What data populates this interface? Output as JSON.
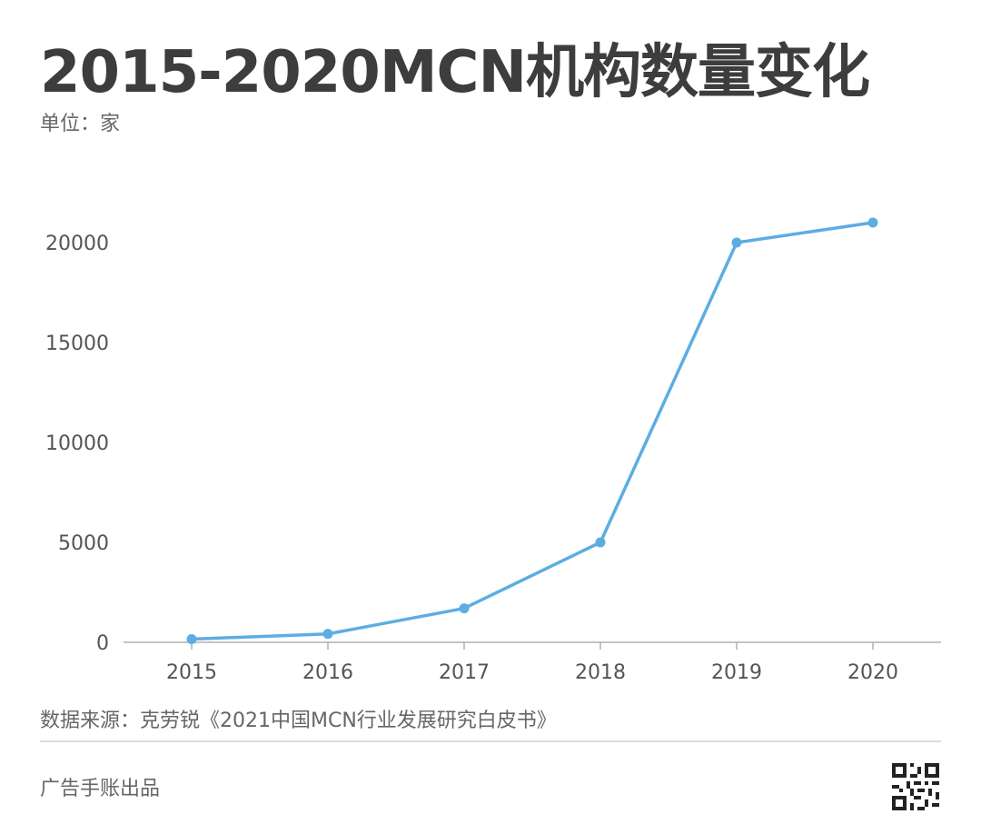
{
  "title": "2015-2020MCN机构数量变化",
  "unit": "单位：家",
  "source": "数据来源：克劳锐《2021中国MCN行业发展研究白皮书》",
  "brand": "广告手账出品",
  "colors": {
    "line": "#5dade2",
    "axis": "#b0b0b0",
    "text": "#555555"
  },
  "chart_data": {
    "type": "line",
    "title": "2015-2020MCN机构数量变化",
    "xlabel": "",
    "ylabel": "",
    "x": [
      "2015",
      "2016",
      "2017",
      "2018",
      "2019",
      "2020"
    ],
    "series": [
      {
        "values": [
          160,
          420,
          1700,
          5000,
          20000,
          21000
        ]
      }
    ],
    "ylim": [
      0,
      22000
    ],
    "yticks": [
      0,
      5000,
      10000,
      15000,
      20000
    ],
    "grid": false,
    "legend": "none"
  }
}
